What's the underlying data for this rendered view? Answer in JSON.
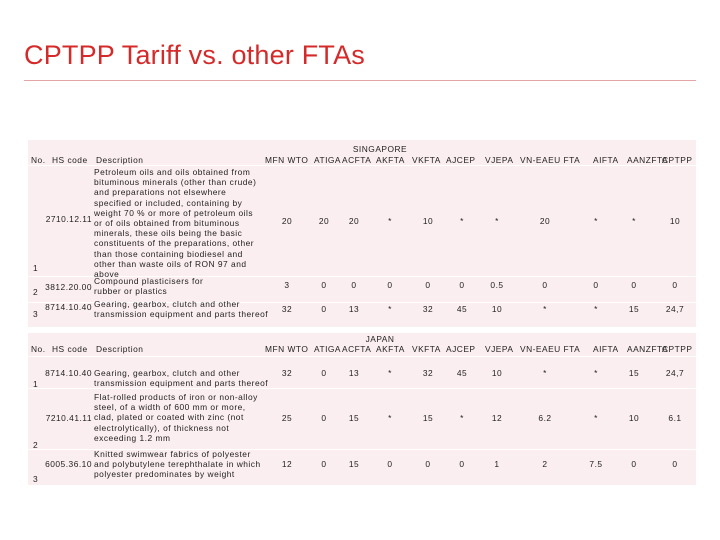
{
  "title": "CPTPP Tariff vs. other FTAs",
  "columns": [
    "MFN WTO",
    "ATIGA",
    "ACFTA",
    "AKFTA",
    "VKFTA",
    "AJCEP",
    "VJEPA",
    "VN-EAEU FTA",
    "AIFTA",
    "AANZFTA",
    "CPTPP"
  ],
  "tables": [
    {
      "group": "SINGAPORE",
      "no_label": "No.",
      "hs_label": "HS code",
      "desc_label": "Description",
      "rows": [
        {
          "no": "1",
          "hs": "2710.12.11",
          "desc": "Petroleum oils and oils obtained from bituminous minerals (other than crude) and preparations not elsewhere specified or included, containing by weight 70 % or more of petroleum oils or of oils obtained from bituminous minerals, these oils being the basic constituents of the preparations, other than those containing biodiesel and other than waste oils of RON 97 and above",
          "values": [
            "20",
            "20",
            "20",
            "*",
            "10",
            "*",
            "*",
            "20",
            "*",
            "*",
            "10"
          ]
        },
        {
          "no": "2",
          "hs": "3812.20.00",
          "desc": "Compound plasticisers for rubber or plastics",
          "values": [
            "3",
            "0",
            "0",
            "0",
            "0",
            "0",
            "0.5",
            "0",
            "0",
            "0",
            "0"
          ]
        },
        {
          "no": "3",
          "hs": "8714.10.40",
          "desc": "Gearing, gearbox, clutch and other transmission equipment and parts thereof",
          "values": [
            "32",
            "0",
            "13",
            "*",
            "32",
            "45",
            "10",
            "*",
            "*",
            "15",
            "24,7"
          ]
        }
      ]
    },
    {
      "group": "JAPAN",
      "no_label": "No.",
      "hs_label": "HS code",
      "desc_label": "Description",
      "rows": [
        {
          "no": "1",
          "hs": "8714.10.40",
          "desc": "Gearing, gearbox, clutch and other transmission equipment and parts thereof",
          "values": [
            "32",
            "0",
            "13",
            "*",
            "32",
            "45",
            "10",
            "*",
            "*",
            "15",
            "24,7"
          ]
        },
        {
          "no": "2",
          "hs": "7210.41.11",
          "desc": "Flat-rolled products of iron or non-alloy steel, of a width of 600 mm or more, clad, plated or coated with zinc (not electrolytically), of thickness not exceeding 1.2 mm",
          "values": [
            "25",
            "0",
            "15",
            "*",
            "15",
            "*",
            "12",
            "6.2",
            "*",
            "10",
            "6.1"
          ]
        },
        {
          "no": "3",
          "hs": "6005.36.10",
          "desc": "Knitted swimwear fabrics of polyester and polybutylene terephthalate in which polyester predominates by weight",
          "values": [
            "12",
            "0",
            "15",
            "0",
            "0",
            "0",
            "1",
            "2",
            "7.5",
            "0",
            "0"
          ]
        }
      ]
    }
  ]
}
